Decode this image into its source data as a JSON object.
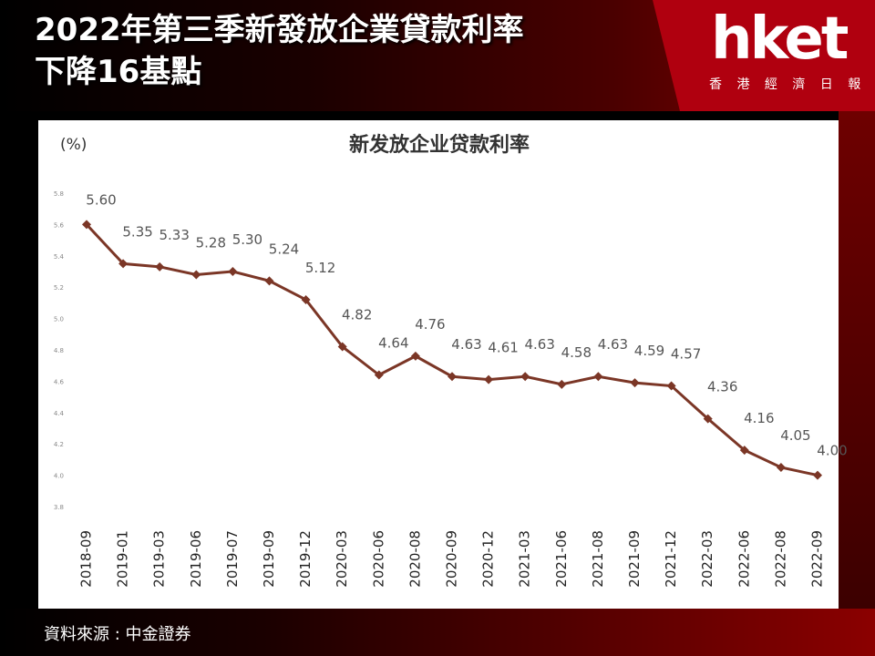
{
  "header": {
    "title_line1": "2022年第三季新發放企業貸款利率",
    "title_line2": "下降16基點",
    "logo_text": "hket",
    "logo_sub": "香 港 經 濟 日 報"
  },
  "footer": {
    "source": "資料來源 : 中金證券"
  },
  "chart_data": {
    "type": "line",
    "title": "新发放企业贷款利率",
    "unit_label": "(%)",
    "categories": [
      "2018-09",
      "2019-01",
      "2019-03",
      "2019-06",
      "2019-07",
      "2019-09",
      "2019-12",
      "2020-03",
      "2020-06",
      "2020-08",
      "2020-09",
      "2020-12",
      "2021-03",
      "2021-06",
      "2021-08",
      "2021-09",
      "2021-12",
      "2022-03",
      "2022-06",
      "2022-08",
      "2022-09"
    ],
    "values": [
      5.6,
      5.35,
      5.33,
      5.28,
      5.3,
      5.24,
      5.12,
      4.82,
      4.64,
      4.76,
      4.63,
      4.61,
      4.63,
      4.58,
      4.63,
      4.59,
      4.57,
      4.36,
      4.16,
      4.05,
      4.0
    ],
    "value_labels": [
      "5.60",
      "5.35",
      "5.33",
      "5.28",
      "5.30",
      "5.24",
      "5.12",
      "4.82",
      "4.64",
      "4.76",
      "4.63",
      "4.61",
      "4.63",
      "4.58",
      "4.63",
      "4.59",
      "4.57",
      "4.36",
      "4.16",
      "4.05",
      "4.00"
    ],
    "yticks": [
      3.8,
      4.0,
      4.2,
      4.4,
      4.6,
      4.8,
      5.0,
      5.2,
      5.4,
      5.6,
      5.8
    ],
    "ytick_labels": [
      "3.8",
      "4.0",
      "4.2",
      "4.4",
      "4.6",
      "4.8",
      "5.0",
      "5.2",
      "5.4",
      "5.6",
      "5.8"
    ],
    "ylim": [
      3.8,
      5.8
    ],
    "grid": false,
    "colors": {
      "line": "#7b3626",
      "marker": "#7b3626"
    }
  }
}
